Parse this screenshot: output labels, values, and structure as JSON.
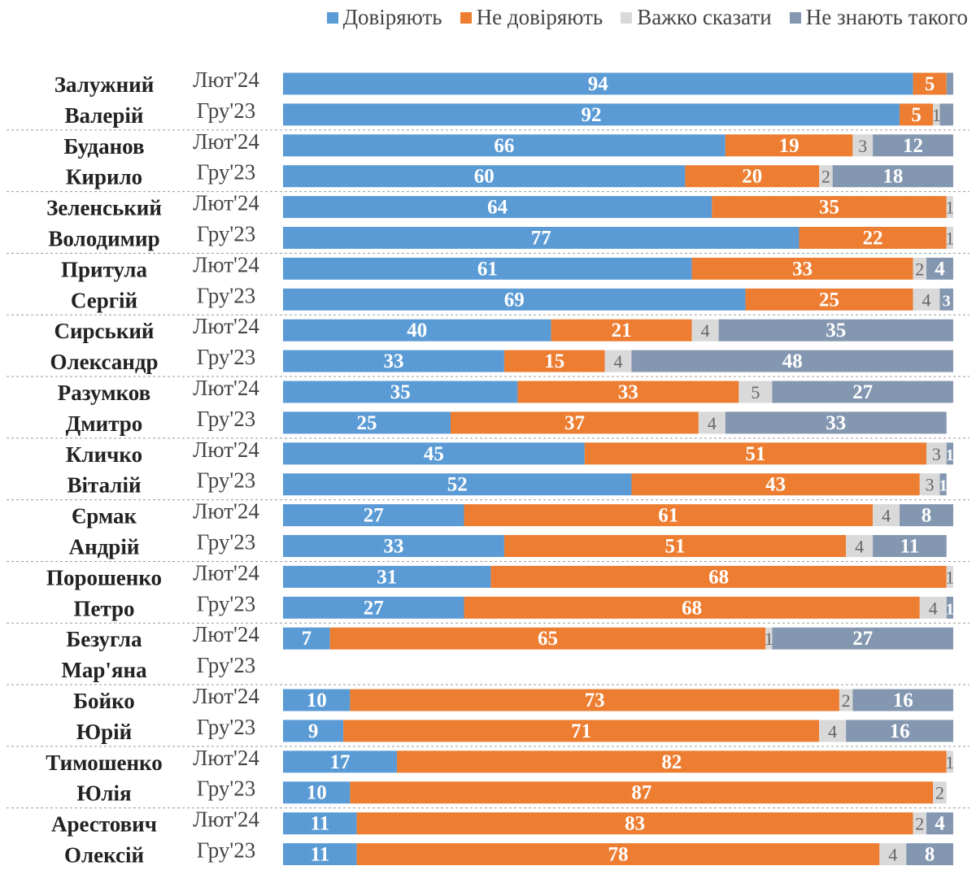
{
  "legend": [
    {
      "label": "Довіряють",
      "color": "#5B9BD5"
    },
    {
      "label": "Не довіряють",
      "color": "#ED7D31"
    },
    {
      "label": "Важко сказати",
      "color": "#D9D9D9"
    },
    {
      "label": "Не знають такого",
      "color": "#8497B0"
    }
  ],
  "chart_data": {
    "type": "bar",
    "orientation": "horizontal",
    "stacked": true,
    "xlim": [
      0,
      100
    ],
    "series_names": [
      "Довіряють",
      "Не довіряють",
      "Важко сказати",
      "Не знають такого"
    ],
    "colors": [
      "#5B9BD5",
      "#ED7D31",
      "#D9D9D9",
      "#8497B0"
    ],
    "groups": [
      {
        "name": [
          "Залужний",
          "Валерій"
        ],
        "rows": [
          {
            "period": "Лют'24",
            "values": [
              94,
              5,
              0,
              1
            ],
            "labels": [
              "94",
              "5",
              "",
              ""
            ]
          },
          {
            "period": "Гру'23",
            "values": [
              92,
              5,
              1,
              2
            ],
            "labels": [
              "92",
              "5",
              "1",
              ""
            ]
          }
        ]
      },
      {
        "name": [
          "Буданов",
          "Кирило"
        ],
        "rows": [
          {
            "period": "Лют'24",
            "values": [
              66,
              19,
              3,
              12
            ],
            "labels": [
              "66",
              "19",
              "3",
              "12"
            ]
          },
          {
            "period": "Гру'23",
            "values": [
              60,
              20,
              2,
              18
            ],
            "labels": [
              "60",
              "20",
              "2",
              "18"
            ]
          }
        ]
      },
      {
        "name": [
          "Зеленський",
          "Володимир"
        ],
        "rows": [
          {
            "period": "Лют'24",
            "values": [
              64,
              35,
              1,
              0
            ],
            "labels": [
              "64",
              "35",
              "1",
              ""
            ]
          },
          {
            "period": "Гру'23",
            "values": [
              77,
              22,
              1,
              0
            ],
            "labels": [
              "77",
              "22",
              "1",
              ""
            ]
          }
        ]
      },
      {
        "name": [
          "Притула",
          "Сергій"
        ],
        "rows": [
          {
            "period": "Лют'24",
            "values": [
              61,
              33,
              2,
              4
            ],
            "labels": [
              "61",
              "33",
              "2",
              "4"
            ]
          },
          {
            "period": "Гру'23",
            "values": [
              69,
              25,
              4,
              3
            ],
            "labels": [
              "69",
              "25",
              "4",
              "3"
            ]
          }
        ]
      },
      {
        "name": [
          "Сирський",
          "Олександр"
        ],
        "rows": [
          {
            "period": "Лют'24",
            "values": [
              40,
              21,
              4,
              35
            ],
            "labels": [
              "40",
              "21",
              "4",
              "35"
            ]
          },
          {
            "period": "Гру'23",
            "values": [
              33,
              15,
              4,
              48
            ],
            "labels": [
              "33",
              "15",
              "4",
              "48"
            ]
          }
        ]
      },
      {
        "name": [
          "Разумков",
          "Дмитро"
        ],
        "rows": [
          {
            "period": "Лют'24",
            "values": [
              35,
              33,
              5,
              27
            ],
            "labels": [
              "35",
              "33",
              "5",
              "27"
            ]
          },
          {
            "period": "Гру'23",
            "values": [
              25,
              37,
              4,
              33
            ],
            "labels": [
              "25",
              "37",
              "4",
              "33"
            ]
          }
        ]
      },
      {
        "name": [
          "Кличко",
          "Віталій"
        ],
        "rows": [
          {
            "period": "Лют'24",
            "values": [
              45,
              51,
              3,
              1
            ],
            "labels": [
              "45",
              "51",
              "3",
              "1"
            ]
          },
          {
            "period": "Гру'23",
            "values": [
              52,
              43,
              3,
              1
            ],
            "labels": [
              "52",
              "43",
              "3",
              "1"
            ]
          }
        ]
      },
      {
        "name": [
          "Єрмак",
          "Андрій"
        ],
        "rows": [
          {
            "period": "Лют'24",
            "values": [
              27,
              61,
              4,
              8
            ],
            "labels": [
              "27",
              "61",
              "4",
              "8"
            ]
          },
          {
            "period": "Гру'23",
            "values": [
              33,
              51,
              4,
              11
            ],
            "labels": [
              "33",
              "51",
              "4",
              "11"
            ]
          }
        ]
      },
      {
        "name": [
          "Порошенко",
          "Петро"
        ],
        "rows": [
          {
            "period": "Лют'24",
            "values": [
              31,
              68,
              1,
              0
            ],
            "labels": [
              "31",
              "68",
              "1",
              ""
            ]
          },
          {
            "period": "Гру'23",
            "values": [
              27,
              68,
              4,
              1
            ],
            "labels": [
              "27",
              "68",
              "4",
              "1"
            ]
          }
        ]
      },
      {
        "name": [
          "Безугла",
          "Мар'яна"
        ],
        "rows": [
          {
            "period": "Лют'24",
            "values": [
              7,
              65,
              1,
              27
            ],
            "labels": [
              "7",
              "65",
              "1",
              "27"
            ]
          },
          {
            "period": "Гру'23",
            "values": [
              0,
              0,
              0,
              0
            ],
            "labels": [
              "",
              "",
              "",
              ""
            ]
          }
        ]
      },
      {
        "name": [
          "Бойко",
          "Юрій"
        ],
        "rows": [
          {
            "period": "Лют'24",
            "values": [
              10,
              73,
              2,
              16
            ],
            "labels": [
              "10",
              "73",
              "2",
              "16"
            ]
          },
          {
            "period": "Гру'23",
            "values": [
              9,
              71,
              4,
              16
            ],
            "labels": [
              "9",
              "71",
              "4",
              "16"
            ]
          }
        ]
      },
      {
        "name": [
          "Тимошенко",
          "Юлія"
        ],
        "rows": [
          {
            "period": "Лют'24",
            "values": [
              17,
              82,
              1,
              0
            ],
            "labels": [
              "17",
              "82",
              "1",
              ""
            ]
          },
          {
            "period": "Гру'23",
            "values": [
              10,
              87,
              2,
              0
            ],
            "labels": [
              "10",
              "87",
              "2",
              ""
            ]
          }
        ]
      },
      {
        "name": [
          "Арестович",
          "Олексій"
        ],
        "rows": [
          {
            "period": "Лют'24",
            "values": [
              11,
              83,
              2,
              4
            ],
            "labels": [
              "11",
              "83",
              "2",
              "4"
            ]
          },
          {
            "period": "Гру'23",
            "values": [
              11,
              78,
              4,
              8
            ],
            "labels": [
              "11",
              "78",
              "4",
              "8"
            ]
          }
        ]
      }
    ]
  }
}
